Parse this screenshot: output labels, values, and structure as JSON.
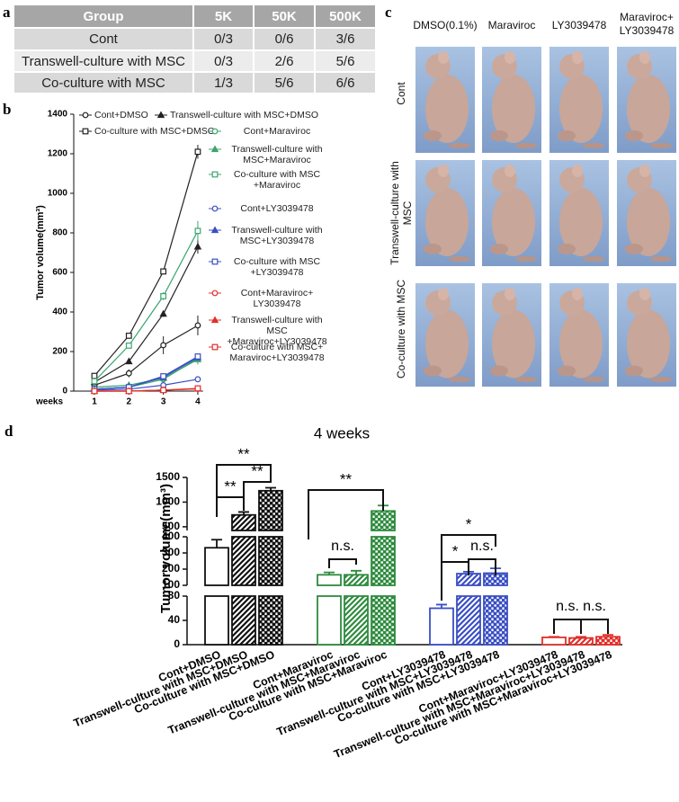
{
  "panel_labels": [
    "a",
    "b",
    "c",
    "d"
  ],
  "table": {
    "header": [
      "Group",
      "5K",
      "50K",
      "500K"
    ],
    "rows": [
      [
        "Cont",
        "0/3",
        "0/6",
        "3/6"
      ],
      [
        "Transwell-culture with MSC",
        "0/3",
        "2/6",
        "5/6"
      ],
      [
        "Co-culture with MSC",
        "1/3",
        "5/6",
        "6/6"
      ]
    ]
  },
  "photos": {
    "columns": [
      "DMSO(0.1%)",
      "Maraviroc",
      "LY3039478",
      "Maraviroc+ LY3039478"
    ],
    "rows": [
      "Cont",
      "Transwell-culture with MSC",
      "Co-culture with MSC"
    ]
  },
  "chart_data": [
    {
      "type": "line",
      "y_label": "Tumor volume(mm³)",
      "x_label": "weeks",
      "x": [
        1,
        2,
        3,
        4
      ],
      "xlim": [
        0.4,
        4.15
      ],
      "xticks": [
        1,
        2,
        3,
        4
      ],
      "ylim": [
        0,
        1400
      ],
      "yticks": [
        0,
        200,
        400,
        600,
        800,
        1000,
        1200,
        1400
      ],
      "series": [
        {
          "name": "Cont+DMSO",
          "color": "#222222",
          "marker": "circle",
          "values": [
            30,
            90,
            232,
            332
          ],
          "errors": [
            8,
            20,
            45,
            50
          ]
        },
        {
          "name": "Transwell-culture with MSC+DMSO",
          "color": "#222222",
          "marker": "triangle",
          "values": [
            45,
            150,
            390,
            730
          ],
          "errors": [
            6,
            12,
            15,
            35
          ]
        },
        {
          "name": "Co-culture with MSC+DMSO",
          "color": "#222222",
          "marker": "square",
          "values": [
            77,
            280,
            605,
            1210
          ],
          "errors": [
            6,
            15,
            15,
            35
          ]
        },
        {
          "name": "Cont+Maraviroc",
          "color": "#3aa56e",
          "marker": "circle",
          "values": [
            10,
            20,
            60,
            165
          ],
          "errors": [
            3,
            5,
            8,
            15
          ]
        },
        {
          "name": "Transwell-culture with MSC+Maraviroc",
          "color": "#3aa56e",
          "marker": "triangle",
          "values": [
            20,
            30,
            65,
            160
          ],
          "errors": [
            3,
            5,
            10,
            25
          ]
        },
        {
          "name": "Co-culture with MSC +Maraviroc",
          "color": "#3aa56e",
          "marker": "square",
          "values": [
            50,
            230,
            480,
            810
          ],
          "errors": [
            6,
            12,
            20,
            50
          ]
        },
        {
          "name": "Cont+LY3039478",
          "color": "#3a4fc4",
          "marker": "circle",
          "values": [
            5,
            10,
            30,
            60
          ],
          "errors": [
            2,
            3,
            4,
            5
          ]
        },
        {
          "name": "Transwell-culture with MSC+LY3039478",
          "color": "#3a4fc4",
          "marker": "triangle",
          "values": [
            10,
            20,
            70,
            170
          ],
          "errors": [
            2,
            4,
            6,
            10
          ]
        },
        {
          "name": "Co-culture with MSC +LY3039478",
          "color": "#3a4fc4",
          "marker": "square",
          "values": [
            10,
            20,
            75,
            175
          ],
          "errors": [
            2,
            4,
            8,
            15
          ]
        },
        {
          "name": "Cont+Maraviroc+ LY3039478",
          "color": "#e0302a",
          "marker": "circle",
          "values": [
            0,
            0,
            5,
            12
          ],
          "errors": [
            1,
            1,
            1,
            2
          ]
        },
        {
          "name": "Transwell-culture with MSC +Maraviroc+LY3039478",
          "color": "#e0302a",
          "marker": "triangle",
          "values": [
            0,
            0,
            5,
            11
          ],
          "errors": [
            1,
            1,
            1,
            2
          ]
        },
        {
          "name": "Co-culture with MSC+ Maraviroc+LY3039478",
          "color": "#e0302a",
          "marker": "square",
          "values": [
            0,
            0,
            5,
            14
          ],
          "errors": [
            1,
            1,
            1,
            3
          ]
        }
      ]
    },
    {
      "type": "bar",
      "title": "4 weeks",
      "y_label": "Tumor volume(mm³)",
      "categories": [
        "Cont+DMSO",
        "Transwell-culture with MSC+DMSO",
        "Co-culture with MSC+DMSO",
        "Cont+Maraviroc",
        "Transwell-culture with MSC+Maraviroc",
        "Co-culture with MSC+Maraviroc",
        "Cont+LY3039478",
        "Transwell-culture with MSC+LY3039478",
        "Co-culture with MSC+LY3039478",
        "Cont+Maraviroc+LY3039478",
        "Transwell-culture with MSC+Maraviroc+LY3039478",
        "Co-culture with MSC+Maraviroc+LY3039478"
      ],
      "values": [
        332,
        740,
        1230,
        165,
        165,
        820,
        60,
        172,
        175,
        12,
        11,
        13
      ],
      "errors": [
        50,
        60,
        60,
        15,
        25,
        110,
        6,
        12,
        30,
        1,
        2,
        3
      ],
      "colors": [
        "#111111",
        "#111111",
        "#111111",
        "#2e8b3e",
        "#2e8b3e",
        "#2e8b3e",
        "#3a4fc4",
        "#3a4fc4",
        "#3a4fc4",
        "#e0302a",
        "#e0302a",
        "#e0302a"
      ],
      "patterns": [
        "none",
        "hatch",
        "grid",
        "none",
        "hatch",
        "grid",
        "none",
        "hatch",
        "grid",
        "none",
        "hatch",
        "grid"
      ],
      "axis_segments": [
        {
          "ylim": [
            0,
            80
          ],
          "yticks": [
            0,
            40,
            80
          ]
        },
        {
          "ylim": [
            100,
            400
          ],
          "yticks": [
            100,
            200,
            300,
            400
          ]
        },
        {
          "ylim": [
            425,
            1500
          ],
          "yticks": [
            500,
            1000,
            1500
          ]
        }
      ],
      "annotations": [
        {
          "text": "**"
        },
        {
          "text": "**"
        },
        {
          "text": "**"
        },
        {
          "text": "**"
        },
        {
          "text": "n.s."
        },
        {
          "text": "*"
        },
        {
          "text": "*"
        },
        {
          "text": "n.s."
        },
        {
          "text": "n.s."
        },
        {
          "text": "n.s."
        }
      ]
    }
  ]
}
